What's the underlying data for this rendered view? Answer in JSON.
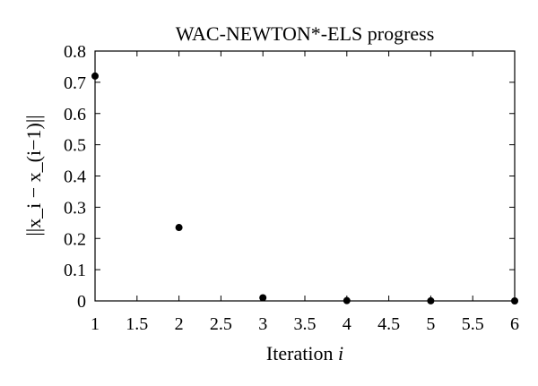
{
  "chart_data": {
    "type": "scatter",
    "title": "WAC-NEWTON*-ELS progress",
    "xlabel": "Iteration",
    "xlabel_var": "i",
    "ylabel": "||x_i − x_(i−1)||",
    "xlim": [
      1,
      6
    ],
    "ylim": [
      0,
      0.8
    ],
    "x_ticks": [
      "1",
      "1.5",
      "2",
      "2.5",
      "3",
      "3.5",
      "4",
      "4.5",
      "5",
      "5.5",
      "6"
    ],
    "y_ticks": [
      "0",
      "0.1",
      "0.2",
      "0.3",
      "0.4",
      "0.5",
      "0.6",
      "0.7",
      "0.8"
    ],
    "grid": false,
    "series": [
      {
        "x": [
          1,
          2,
          3,
          4,
          5,
          6
        ],
        "y": [
          0.72,
          0.235,
          0.01,
          0.001,
          0.0002,
          0.0
        ]
      }
    ],
    "marker_color": "#000000"
  }
}
